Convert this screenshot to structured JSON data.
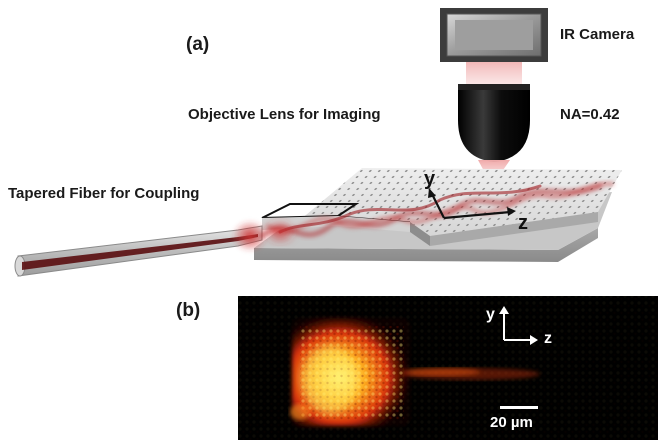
{
  "panel_a": {
    "label": "(a)",
    "camera_label": "IR Camera",
    "objective_label": "Objective Lens for Imaging",
    "na_label": "NA=0.42",
    "fiber_label": "Tapered Fiber for Coupling",
    "axis_y": "y",
    "axis_z": "z"
  },
  "panel_b": {
    "label": "(b)",
    "axis_y": "y",
    "axis_z": "z",
    "scale_bar": "20 µm"
  },
  "colors": {
    "camera_body": "#4a4a4a",
    "camera_face": "#a6a6a6",
    "lens": "#111111",
    "beam": "#e8a0a0",
    "slab": "#c9c9c9",
    "fiber_core": "#5a0d10",
    "emission_hot": "#ffe04a",
    "emission_mid": "#e04010",
    "image_bg": "#000000"
  }
}
